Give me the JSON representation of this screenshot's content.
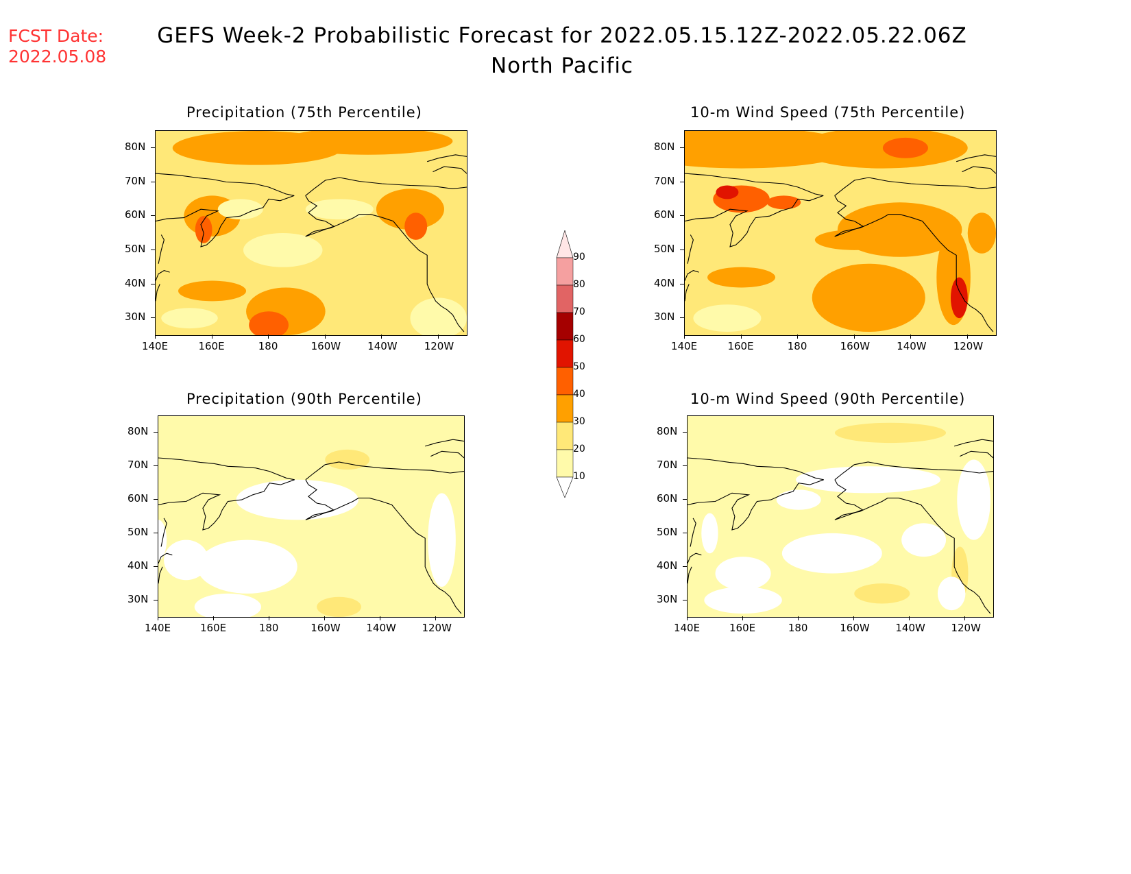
{
  "forecast_date": {
    "label": "FCST Date:",
    "value": "2022.05.08"
  },
  "title": {
    "line1": "GEFS Week-2 Probabilistic Forecast for 2022.05.15.12Z-2022.05.22.06Z",
    "line2": "North Pacific"
  },
  "lat_labels": [
    "80N",
    "70N",
    "60N",
    "50N",
    "40N",
    "30N"
  ],
  "lon_labels": [
    "140E",
    "160E",
    "180",
    "160W",
    "140W",
    "120W"
  ],
  "panels": [
    {
      "id": "precip75",
      "title": "Precipitation (75th Percentile)",
      "level": "high"
    },
    {
      "id": "wind75",
      "title": "10-m Wind Speed (75th Percentile)",
      "level": "very-high"
    },
    {
      "id": "precip90",
      "title": "Precipitation (90th Percentile)",
      "level": "low"
    },
    {
      "id": "wind90",
      "title": "10-m Wind Speed (90th Percentile)",
      "level": "low"
    }
  ],
  "colorbar": {
    "levels": [
      "10",
      "20",
      "30",
      "40",
      "50",
      "60",
      "70",
      "80",
      "90"
    ],
    "colors": [
      "#fffaaa",
      "#ffe878",
      "#ffa000",
      "#ff6000",
      "#e11400",
      "#a50000",
      "#e16464",
      "#f5a0a0",
      "#ffe6e6"
    ]
  }
}
